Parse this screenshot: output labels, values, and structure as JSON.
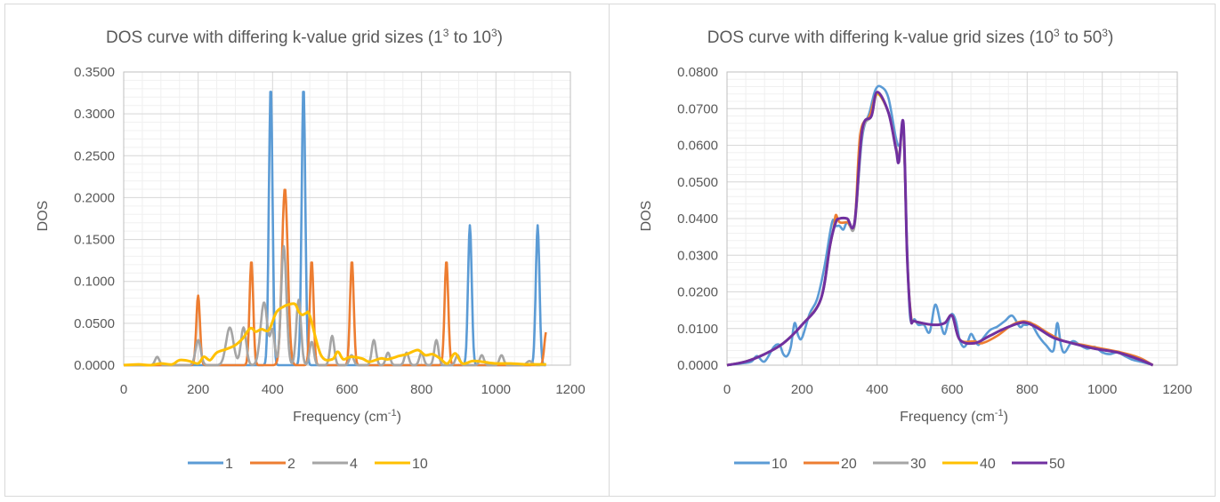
{
  "chart_data": [
    {
      "type": "line",
      "title": "DOS curve with differing k-value grid sizes (1",
      "title_sup1": "3",
      "title_mid": " to 10",
      "title_sup2": "3",
      "title_end": ")",
      "xlabel": "Frequency (cm",
      "xlabel_sup": "-1",
      "xlabel_end": ")",
      "ylabel": "DOS",
      "xlim": [
        0,
        1200
      ],
      "ylim": [
        0,
        0.35
      ],
      "xticks": [
        "0",
        "200",
        "400",
        "600",
        "800",
        "1000",
        "1200"
      ],
      "yticks": [
        "0.0000",
        "0.0500",
        "0.1000",
        "0.1500",
        "0.2000",
        "0.2500",
        "0.3000",
        "0.3500"
      ],
      "grid": true,
      "legend_position": "bottom",
      "series": [
        {
          "name": "1",
          "color": "#5b9bd5",
          "peaks": [
            [
              395,
              0.333,
              7
            ],
            [
              483,
              0.333,
              7
            ],
            [
              930,
              0.167,
              7
            ],
            [
              1112,
              0.167,
              7
            ]
          ]
        },
        {
          "name": "2",
          "color": "#ed7d31",
          "peaks": [
            [
              200,
              0.083,
              7
            ],
            [
              343,
              0.125,
              7
            ],
            [
              433,
              0.211,
              11
            ],
            [
              505,
              0.125,
              7
            ],
            [
              613,
              0.125,
              7
            ],
            [
              867,
              0.125,
              7
            ],
            [
              1135,
              0.04,
              7
            ]
          ]
        },
        {
          "name": "4",
          "color": "#a5a5a5",
          "peaks": [
            [
              90,
              0.01,
              8
            ],
            [
              200,
              0.03,
              10
            ],
            [
              285,
              0.045,
              14
            ],
            [
              322,
              0.045,
              10
            ],
            [
              377,
              0.075,
              13
            ],
            [
              400,
              0.04,
              8
            ],
            [
              430,
              0.142,
              10
            ],
            [
              470,
              0.078,
              9
            ],
            [
              505,
              0.028,
              8
            ],
            [
              560,
              0.035,
              8
            ],
            [
              612,
              0.012,
              8
            ],
            [
              672,
              0.03,
              8
            ],
            [
              710,
              0.015,
              8
            ],
            [
              760,
              0.015,
              8
            ],
            [
              800,
              0.015,
              8
            ],
            [
              840,
              0.03,
              8
            ],
            [
              897,
              0.012,
              8
            ],
            [
              962,
              0.012,
              8
            ],
            [
              1015,
              0.012,
              8
            ],
            [
              1090,
              0.005,
              10
            ]
          ]
        },
        {
          "name": "10",
          "color": "#ffc000",
          "x": [
            0,
            40,
            70,
            100,
            130,
            150,
            175,
            200,
            215,
            232,
            250,
            275,
            300,
            320,
            340,
            355,
            370,
            390,
            410,
            430,
            440,
            460,
            470,
            480,
            490,
            500,
            530,
            560,
            575,
            590,
            610,
            640,
            660,
            690,
            710,
            740,
            760,
            790,
            810,
            830,
            850,
            870,
            890,
            910,
            940,
            980,
            1000,
            1040,
            1080,
            1100,
            1135
          ],
          "y": [
            0.0,
            0.001,
            0.0,
            0.002,
            0.001,
            0.006,
            0.005,
            0.002,
            0.01,
            0.006,
            0.015,
            0.019,
            0.024,
            0.032,
            0.044,
            0.04,
            0.043,
            0.042,
            0.063,
            0.07,
            0.072,
            0.073,
            0.064,
            0.06,
            0.062,
            0.059,
            0.012,
            0.007,
            0.016,
            0.007,
            0.01,
            0.008,
            0.004,
            0.008,
            0.007,
            0.011,
            0.013,
            0.018,
            0.012,
            0.013,
            0.008,
            0.002,
            0.014,
            0.002,
            0.005,
            0.003,
            0.002,
            0.002,
            0.001,
            0.001,
            0.001
          ]
        }
      ]
    },
    {
      "type": "line",
      "title": "DOS curve with differing k-value grid sizes (10",
      "title_sup1": "3",
      "title_mid": " to 50",
      "title_sup2": "3",
      "title_end": ")",
      "xlabel": "Frequency (cm",
      "xlabel_sup": "-1",
      "xlabel_end": ")",
      "ylabel": "DOS",
      "xlim": [
        0,
        1200
      ],
      "ylim": [
        0,
        0.08
      ],
      "xticks": [
        "0",
        "200",
        "400",
        "600",
        "800",
        "1000",
        "1200"
      ],
      "yticks": [
        "0.0000",
        "0.0100",
        "0.0200",
        "0.0300",
        "0.0400",
        "0.0500",
        "0.0600",
        "0.0700",
        "0.0800"
      ],
      "grid": true,
      "legend_position": "bottom",
      "series": [
        {
          "name": "10",
          "color": "#5b9bd5",
          "x": [
            0,
            40,
            65,
            80,
            100,
            125,
            140,
            150,
            160,
            170,
            180,
            190,
            200,
            220,
            240,
            260,
            280,
            290,
            300,
            310,
            320,
            340,
            360,
            380,
            395,
            410,
            430,
            450,
            460,
            470,
            480,
            488,
            500,
            510,
            525,
            540,
            555,
            570,
            580,
            590,
            600,
            610,
            620,
            630,
            640,
            650,
            660,
            670,
            680,
            700,
            720,
            740,
            760,
            780,
            790,
            800,
            810,
            830,
            850,
            870,
            880,
            890,
            900,
            920,
            940,
            960,
            980,
            1000,
            1020,
            1040,
            1060,
            1080,
            1100,
            1120,
            1135
          ],
          "y": [
            0.0,
            0.0005,
            0.001,
            0.0025,
            0.001,
            0.005,
            0.0055,
            0.003,
            0.0025,
            0.005,
            0.0115,
            0.008,
            0.0075,
            0.014,
            0.018,
            0.027,
            0.039,
            0.038,
            0.038,
            0.037,
            0.039,
            0.039,
            0.062,
            0.069,
            0.075,
            0.076,
            0.073,
            0.062,
            0.06,
            0.064,
            0.032,
            0.013,
            0.0125,
            0.011,
            0.011,
            0.009,
            0.0165,
            0.011,
            0.0085,
            0.012,
            0.014,
            0.012,
            0.007,
            0.005,
            0.006,
            0.0085,
            0.007,
            0.0055,
            0.007,
            0.0095,
            0.0105,
            0.012,
            0.0135,
            0.0105,
            0.011,
            0.011,
            0.0115,
            0.008,
            0.0055,
            0.004,
            0.0115,
            0.0055,
            0.0035,
            0.0065,
            0.0055,
            0.0045,
            0.005,
            0.0035,
            0.003,
            0.0035,
            0.0025,
            0.0015,
            0.001,
            0.0005,
            0.0
          ]
        },
        {
          "name": "20",
          "color": "#ed7d31",
          "x": [
            0,
            50,
            100,
            150,
            200,
            250,
            270,
            285,
            290,
            300,
            320,
            340,
            355,
            380,
            400,
            430,
            445,
            458,
            470,
            480,
            490,
            500,
            550,
            580,
            600,
            620,
            660,
            680,
            720,
            760,
            790,
            820,
            860,
            900,
            950,
            1000,
            1050,
            1100,
            1135
          ],
          "y": [
            0.0,
            0.001,
            0.003,
            0.006,
            0.011,
            0.018,
            0.03,
            0.038,
            0.041,
            0.039,
            0.039,
            0.039,
            0.063,
            0.068,
            0.074,
            0.069,
            0.062,
            0.057,
            0.065,
            0.03,
            0.014,
            0.012,
            0.011,
            0.0115,
            0.0135,
            0.007,
            0.0065,
            0.006,
            0.008,
            0.011,
            0.012,
            0.011,
            0.0085,
            0.0065,
            0.0055,
            0.0045,
            0.0035,
            0.002,
            0.0
          ]
        },
        {
          "name": "30",
          "color": "#a5a5a5",
          "x": [
            0,
            50,
            100,
            150,
            200,
            250,
            275,
            290,
            300,
            320,
            340,
            360,
            385,
            400,
            430,
            450,
            458,
            470,
            480,
            490,
            500,
            550,
            580,
            600,
            620,
            660,
            700,
            740,
            780,
            800,
            830,
            870,
            920,
            980,
            1040,
            1100,
            1135
          ],
          "y": [
            0.0,
            0.001,
            0.003,
            0.006,
            0.011,
            0.018,
            0.033,
            0.039,
            0.04,
            0.04,
            0.038,
            0.063,
            0.068,
            0.074,
            0.069,
            0.06,
            0.056,
            0.065,
            0.03,
            0.013,
            0.012,
            0.011,
            0.0115,
            0.0135,
            0.007,
            0.006,
            0.008,
            0.01,
            0.0115,
            0.0115,
            0.01,
            0.0075,
            0.006,
            0.0045,
            0.0035,
            0.0015,
            0.0
          ]
        },
        {
          "name": "40",
          "color": "#ffc000",
          "x": [
            0,
            50,
            100,
            150,
            200,
            250,
            275,
            290,
            300,
            320,
            340,
            360,
            385,
            400,
            430,
            450,
            458,
            470,
            480,
            490,
            500,
            550,
            580,
            600,
            620,
            660,
            700,
            740,
            780,
            800,
            830,
            870,
            920,
            980,
            1040,
            1100,
            1135
          ],
          "y": [
            0.0,
            0.001,
            0.003,
            0.006,
            0.011,
            0.018,
            0.033,
            0.039,
            0.04,
            0.04,
            0.039,
            0.064,
            0.068,
            0.074,
            0.069,
            0.059,
            0.056,
            0.065,
            0.03,
            0.013,
            0.012,
            0.011,
            0.0115,
            0.0135,
            0.007,
            0.006,
            0.008,
            0.01,
            0.0115,
            0.0115,
            0.01,
            0.0075,
            0.006,
            0.0045,
            0.0035,
            0.0015,
            0.0
          ]
        },
        {
          "name": "50",
          "color": "#7030a0",
          "x": [
            0,
            50,
            100,
            150,
            200,
            250,
            275,
            290,
            300,
            320,
            340,
            360,
            385,
            400,
            430,
            450,
            458,
            470,
            480,
            490,
            500,
            550,
            580,
            600,
            620,
            660,
            700,
            740,
            780,
            800,
            830,
            870,
            920,
            980,
            1040,
            1100,
            1135
          ],
          "y": [
            0.0,
            0.001,
            0.003,
            0.006,
            0.011,
            0.018,
            0.033,
            0.039,
            0.04,
            0.04,
            0.039,
            0.064,
            0.068,
            0.0745,
            0.069,
            0.059,
            0.0555,
            0.066,
            0.03,
            0.013,
            0.012,
            0.011,
            0.0115,
            0.0135,
            0.007,
            0.006,
            0.008,
            0.01,
            0.0115,
            0.0115,
            0.01,
            0.0075,
            0.006,
            0.0045,
            0.0035,
            0.0015,
            0.0
          ]
        }
      ]
    }
  ]
}
